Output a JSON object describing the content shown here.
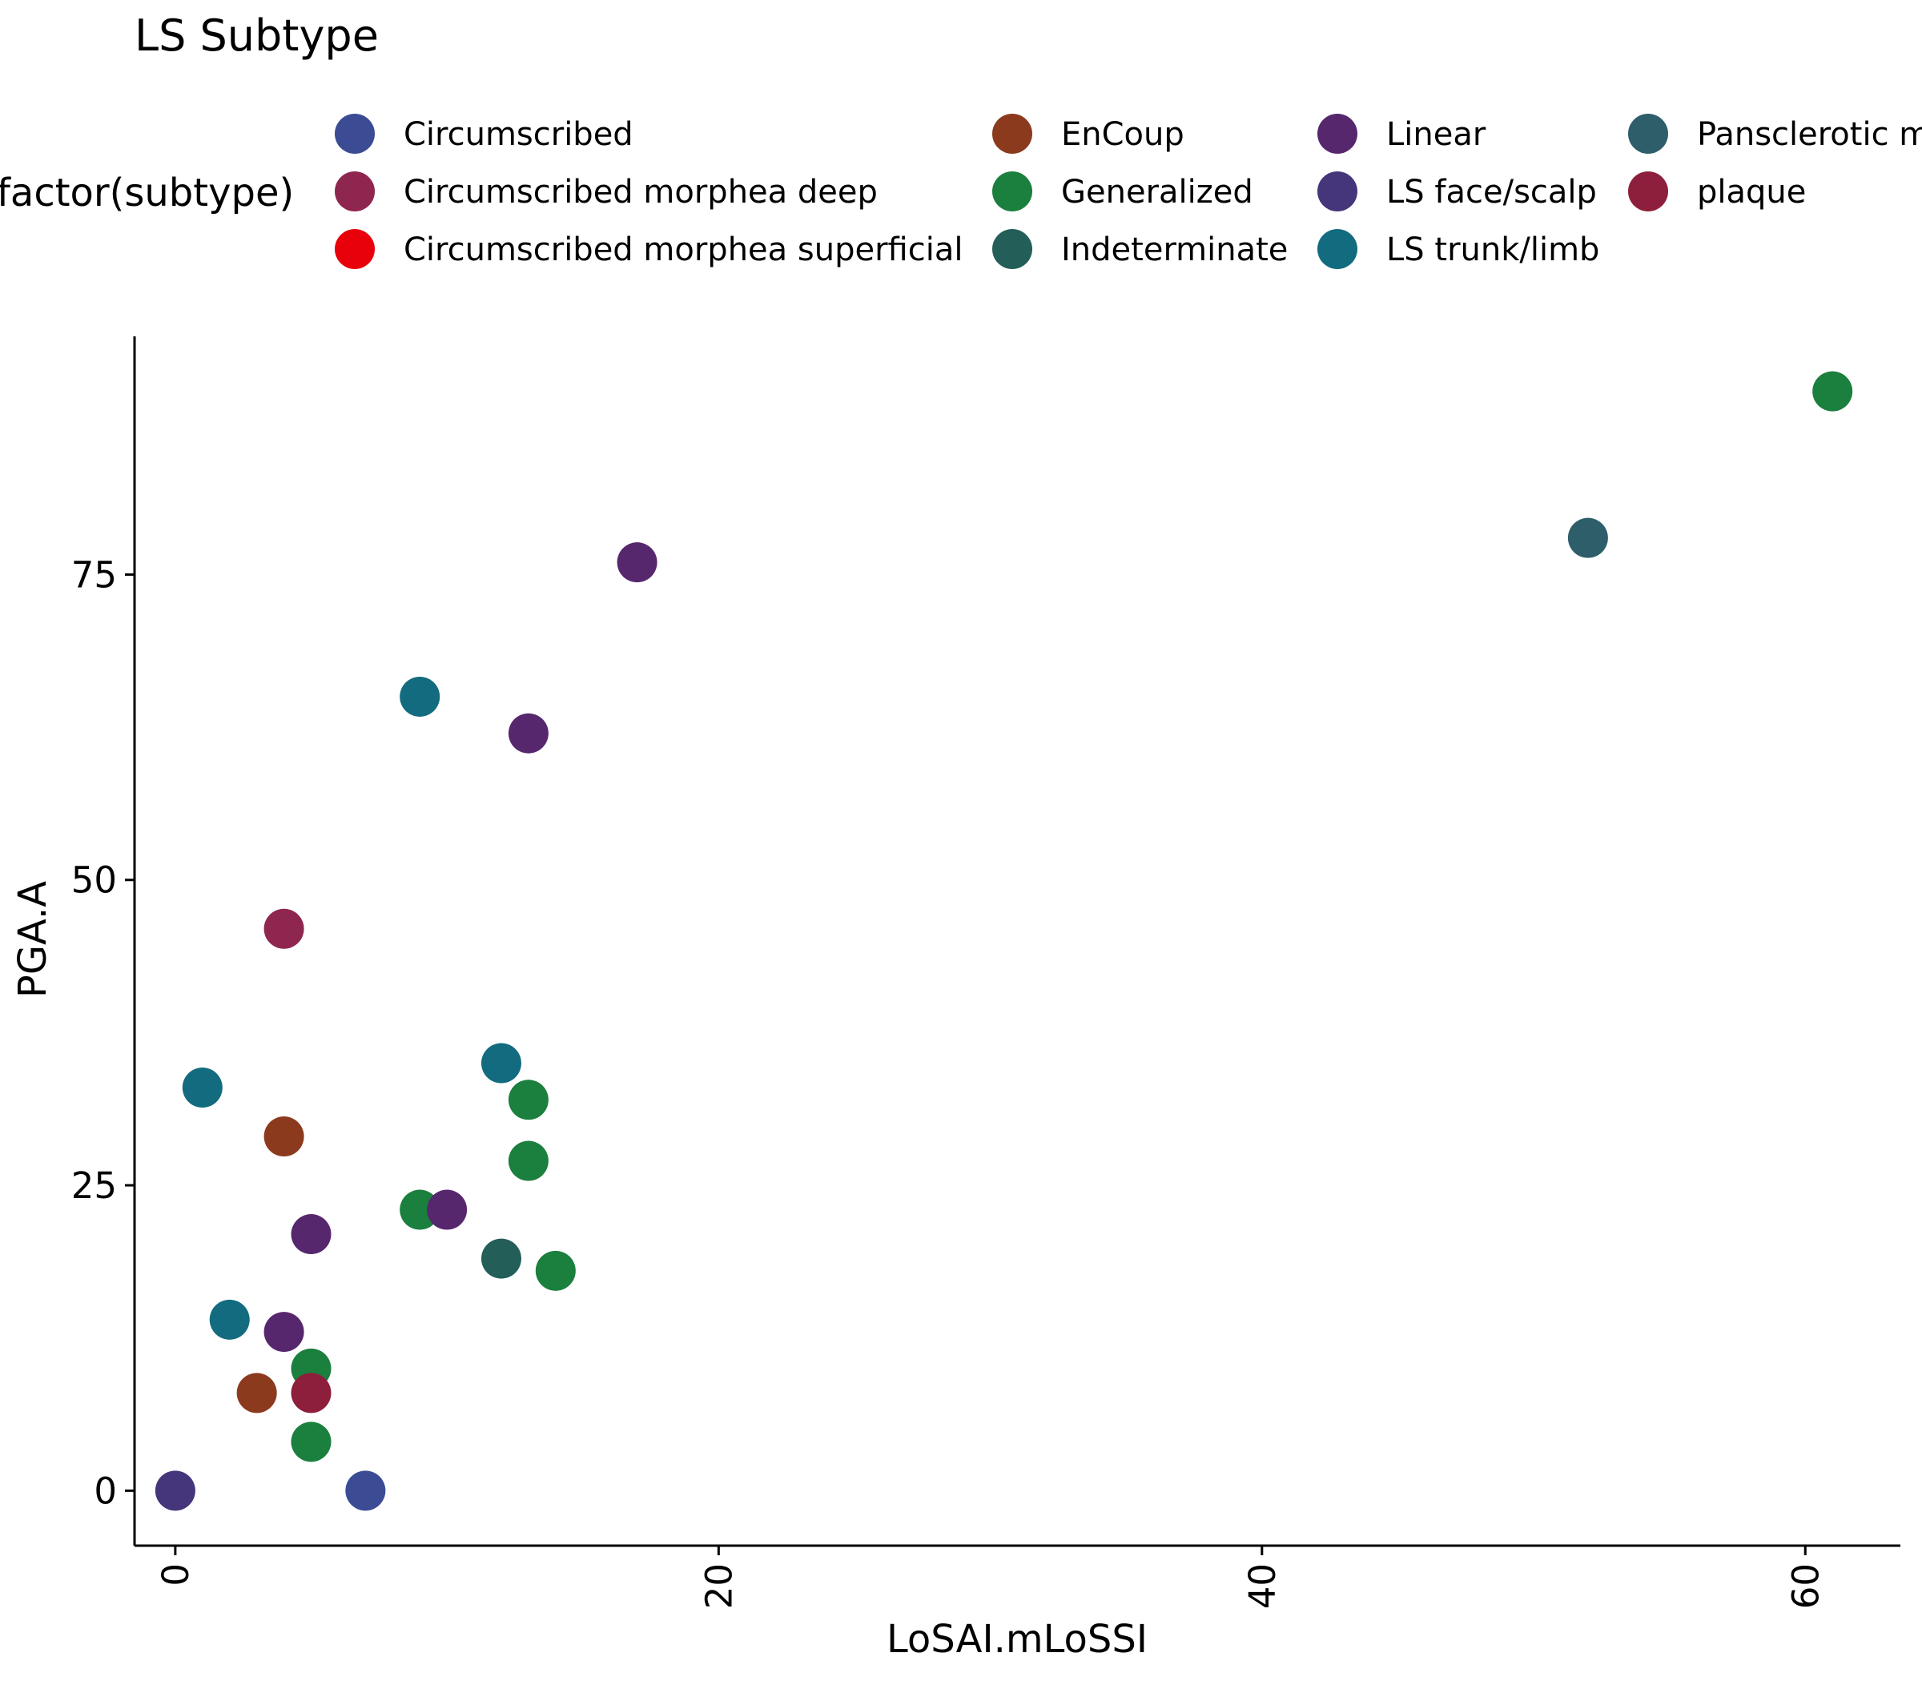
{
  "chart_data": {
    "type": "scatter",
    "title": "LS Subtype",
    "xlabel": "LoSAI.mLoSSI",
    "ylabel": "PGA.A",
    "xlim": [
      -1.5,
      63.5
    ],
    "ylim": [
      -4.5,
      94.5
    ],
    "x_ticks": [
      0,
      20,
      40,
      60
    ],
    "y_ticks": [
      0,
      25,
      50,
      75
    ],
    "grid": false,
    "legend": {
      "title": "factor(subtype)",
      "position": "top",
      "entries": [
        {
          "label": "Circumscribed",
          "color": "#3b4c94"
        },
        {
          "label": "Circumscribed morphea deep",
          "color": "#8e2650"
        },
        {
          "label": "Circumscribed morphea superficial",
          "color": "#e8000b"
        },
        {
          "label": "EnCoup",
          "color": "#8b3a1e"
        },
        {
          "label": "Generalized",
          "color": "#1b7f3e"
        },
        {
          "label": "Indeterminate",
          "color": "#245e58"
        },
        {
          "label": "Linear",
          "color": "#57276e"
        },
        {
          "label": "LS face/scalp",
          "color": "#45357a"
        },
        {
          "label": "LS trunk/limb",
          "color": "#136b7f"
        },
        {
          "label": "Pansclerotic m",
          "color": "#2e5e6a"
        },
        {
          "label": "plaque",
          "color": "#8d1f3c"
        }
      ]
    },
    "series": [
      {
        "name": "Circumscribed",
        "color": "#3b4c94",
        "points": [
          [
            7,
            0
          ]
        ]
      },
      {
        "name": "Circumscribed morphea deep",
        "color": "#8e2650",
        "points": [
          [
            4,
            46
          ]
        ]
      },
      {
        "name": "Circumscribed morphea superficial",
        "color": "#e8000b",
        "points": []
      },
      {
        "name": "EnCoup",
        "color": "#8b3a1e",
        "points": [
          [
            4,
            29
          ],
          [
            3,
            8
          ]
        ]
      },
      {
        "name": "Generalized",
        "color": "#1b7f3e",
        "points": [
          [
            61,
            90
          ],
          [
            13,
            32
          ],
          [
            13,
            27
          ],
          [
            9,
            23
          ],
          [
            14,
            18
          ],
          [
            5,
            10
          ],
          [
            5,
            4
          ]
        ]
      },
      {
        "name": "Indeterminate",
        "color": "#245e58",
        "points": [
          [
            12,
            19
          ]
        ]
      },
      {
        "name": "Linear",
        "color": "#57276e",
        "points": [
          [
            17,
            76
          ],
          [
            13,
            62
          ],
          [
            10,
            23
          ],
          [
            5,
            21
          ],
          [
            4,
            13
          ]
        ]
      },
      {
        "name": "LS face/scalp",
        "color": "#45357a",
        "points": [
          [
            0,
            0
          ]
        ]
      },
      {
        "name": "LS trunk/limb",
        "color": "#136b7f",
        "points": [
          [
            9,
            65
          ],
          [
            12,
            35
          ],
          [
            1,
            33
          ],
          [
            2,
            14
          ]
        ]
      },
      {
        "name": "Pansclerotic m",
        "color": "#2e5e6a",
        "points": [
          [
            52,
            78
          ]
        ]
      },
      {
        "name": "plaque",
        "color": "#8d1f3c",
        "points": [
          [
            5,
            8
          ]
        ]
      }
    ]
  }
}
